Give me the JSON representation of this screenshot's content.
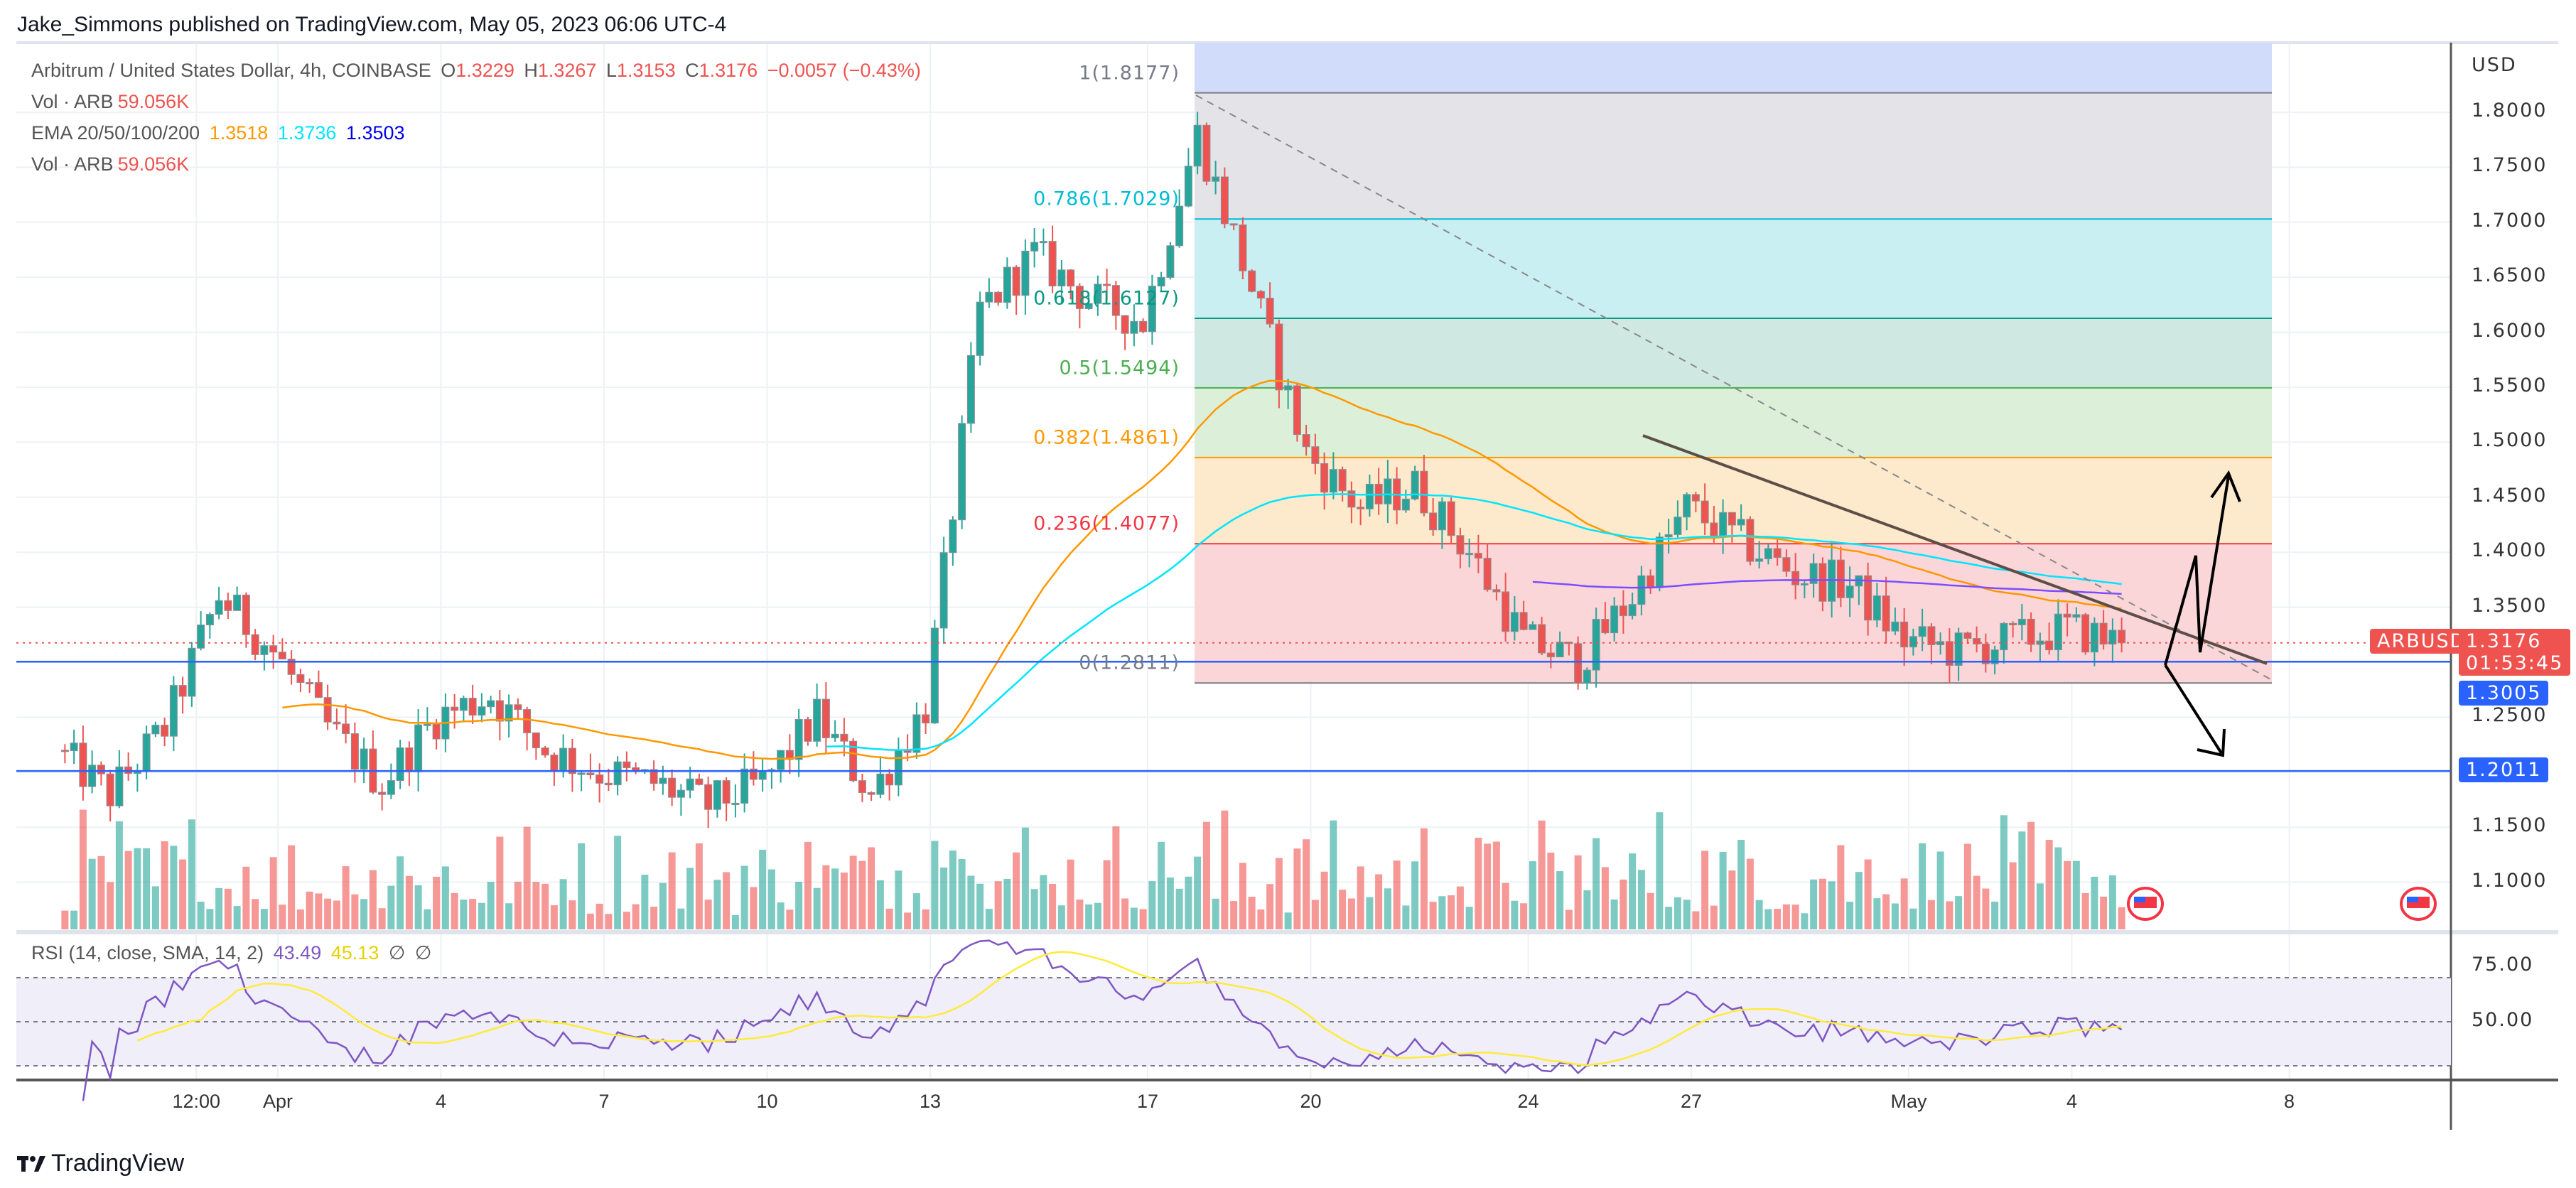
{
  "header": {
    "publisher": "Jake_Simmons published on TradingView.com, May 05, 2023 06:06 UTC-4"
  },
  "legend": {
    "symbol": "Arbitrum / United States Dollar, 4h, COINBASE",
    "o_label": "O",
    "o": "1.3229",
    "h_label": "H",
    "h": "1.3267",
    "l_label": "L",
    "l": "1.3153",
    "c_label": "C",
    "c": "1.3176",
    "change": "−0.0057 (−0.43%)",
    "vol_label": "Vol · ARB",
    "vol": "59.056K",
    "ema_label": "EMA 20/50/100/200",
    "ema1": "1.3518",
    "ema2": "1.3736",
    "ema3": "1.3503",
    "vol2_label": "Vol · ARB",
    "vol2": "59.056K",
    "rsi_label": "RSI (14, close, SMA, 14, 2)",
    "rsi": "43.49",
    "rsi_sma": "45.13",
    "rsi_extra1": "∅",
    "rsi_extra2": "∅"
  },
  "price_axis": {
    "currency": "USD",
    "ticks": [
      "1.8000",
      "1.7500",
      "1.7000",
      "1.6500",
      "1.6000",
      "1.5500",
      "1.5000",
      "1.4500",
      "1.4000",
      "1.3500",
      "1.2500",
      "1.1500",
      "1.1000"
    ],
    "symbol_tag": "ARBUSD",
    "last_price": "1.3176",
    "countdown": "01:53:45",
    "line1": "1.3005",
    "line2": "1.2011"
  },
  "rsi_axis": {
    "ticks": [
      "75.00",
      "50.00"
    ]
  },
  "time_axis": [
    "12:00",
    "Apr",
    "4",
    "7",
    "10",
    "13",
    "17",
    "20",
    "24",
    "27",
    "May",
    "4",
    "8"
  ],
  "fib": [
    {
      "label": "1(1.8177)",
      "level": 1,
      "price": 1.8177,
      "color": "#787b86"
    },
    {
      "label": "0.786(1.7029)",
      "level": 0.786,
      "price": 1.7029,
      "color": "#00bcd4"
    },
    {
      "label": "0.618(1.6127)",
      "level": 0.618,
      "price": 1.6127,
      "color": "#089981"
    },
    {
      "label": "0.5(1.5494)",
      "level": 0.5,
      "price": 1.5494,
      "color": "#4caf50"
    },
    {
      "label": "0.382(1.4861)",
      "level": 0.382,
      "price": 1.4861,
      "color": "#ff9800"
    },
    {
      "label": "0.236(1.4077)",
      "level": 0.236,
      "price": 1.4077,
      "color": "#f23645"
    },
    {
      "label": "0(1.2811)",
      "level": 0,
      "price": 1.2811,
      "color": "#787b86"
    }
  ],
  "colors": {
    "up": "#26a69a",
    "down": "#ef5350",
    "ema20": "#ff9800",
    "ema50": "#00e5ff",
    "ema100": "#2962ff",
    "rsi": "#7e57c2",
    "rsi_sma": "#ffeb3b",
    "hline": "#2962ff"
  },
  "chart_data": {
    "type": "candlestick",
    "interval": "4h",
    "daily_closes": [
      {
        "date": "Mar 28",
        "close": 1.22
      },
      {
        "date": "Mar 29",
        "close": 1.18
      },
      {
        "date": "Mar 30",
        "close": 1.24
      },
      {
        "date": "Mar 31",
        "close": 1.36
      },
      {
        "date": "Apr 1",
        "close": 1.31
      },
      {
        "date": "Apr 2",
        "close": 1.24
      },
      {
        "date": "Apr 3",
        "close": 1.19
      },
      {
        "date": "Apr 4",
        "close": 1.25
      },
      {
        "date": "Apr 5",
        "close": 1.27
      },
      {
        "date": "Apr 6",
        "close": 1.22
      },
      {
        "date": "Apr 7",
        "close": 1.2
      },
      {
        "date": "Apr 8",
        "close": 1.19
      },
      {
        "date": "Apr 9",
        "close": 1.17
      },
      {
        "date": "Apr 10",
        "close": 1.19
      },
      {
        "date": "Apr 11",
        "close": 1.25
      },
      {
        "date": "Apr 12",
        "close": 1.18
      },
      {
        "date": "Apr 13",
        "close": 1.26
      },
      {
        "date": "Apr 14",
        "close": 1.62
      },
      {
        "date": "Apr 15",
        "close": 1.67
      },
      {
        "date": "Apr 16",
        "close": 1.63
      },
      {
        "date": "Apr 17",
        "close": 1.61
      },
      {
        "date": "Apr 18",
        "close": 1.78
      },
      {
        "date": "Apr 19",
        "close": 1.64
      },
      {
        "date": "Apr 20",
        "close": 1.49
      },
      {
        "date": "Apr 21",
        "close": 1.44
      },
      {
        "date": "Apr 22",
        "close": 1.46
      },
      {
        "date": "Apr 23",
        "close": 1.4
      },
      {
        "date": "Apr 24",
        "close": 1.32
      },
      {
        "date": "Apr 25",
        "close": 1.3
      },
      {
        "date": "Apr 26",
        "close": 1.36
      },
      {
        "date": "Apr 27",
        "close": 1.44
      },
      {
        "date": "Apr 28",
        "close": 1.41
      },
      {
        "date": "Apr 29",
        "close": 1.38
      },
      {
        "date": "Apr 30",
        "close": 1.37
      },
      {
        "date": "May 1",
        "close": 1.32
      },
      {
        "date": "May 2",
        "close": 1.31
      },
      {
        "date": "May 3",
        "close": 1.32
      },
      {
        "date": "May 4",
        "close": 1.33
      },
      {
        "date": "May 5",
        "close": 1.3176
      }
    ],
    "ylim": [
      1.07,
      1.84
    ],
    "rsi_levels": [
      70,
      50,
      30
    ],
    "horizontal_lines": [
      1.3005,
      1.2011
    ],
    "trendline": [
      {
        "date": "Apr 26",
        "price": 1.505
      },
      {
        "date": "May 6",
        "price": 1.3
      }
    ]
  }
}
